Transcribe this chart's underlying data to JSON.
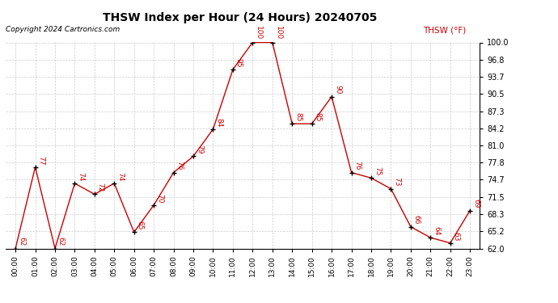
{
  "title": "THSW Index per Hour (24 Hours) 20240705",
  "copyright": "Copyright 2024 Cartronics.com",
  "legend_label": "THSW (°F)",
  "hours": [
    0,
    1,
    2,
    3,
    4,
    5,
    6,
    7,
    8,
    9,
    10,
    11,
    12,
    13,
    14,
    15,
    16,
    17,
    18,
    19,
    20,
    21,
    22,
    23
  ],
  "values": [
    62,
    77,
    62,
    74,
    72,
    74,
    65,
    70,
    76,
    79,
    84,
    95,
    100,
    100,
    85,
    85,
    90,
    76,
    75,
    73,
    66,
    64,
    63,
    69
  ],
  "yticks": [
    62.0,
    65.2,
    68.3,
    71.5,
    74.7,
    77.8,
    81.0,
    84.2,
    87.3,
    90.5,
    93.7,
    96.8,
    100.0
  ],
  "ylim": [
    62.0,
    100.0
  ],
  "line_color": "#cc0000",
  "marker_color": "#000000",
  "label_color": "#cc0000",
  "title_color": "#000000",
  "background_color": "#ffffff",
  "grid_color": "#cccccc"
}
